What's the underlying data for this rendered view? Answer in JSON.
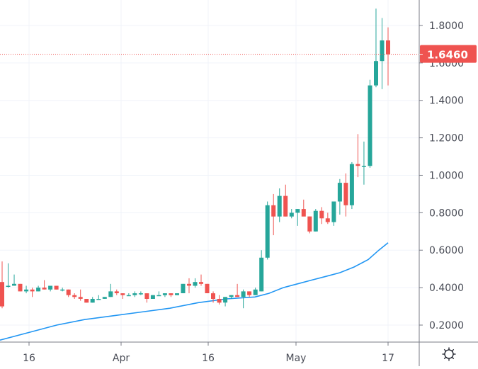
{
  "chart_data": {
    "type": "candlestick",
    "title": "",
    "xlabel": "",
    "ylabel": "",
    "ylim": [
      0.1,
      1.92
    ],
    "grid": true,
    "colors": {
      "up": "#26a69a",
      "down": "#ef5350",
      "ma_line": "#2196f3",
      "grid": "#f0f3fa",
      "axis": "#787b86",
      "price_line": "#ef5350",
      "background": "#ffffff"
    },
    "y_ticks": [
      "0.2000",
      "0.4000",
      "0.6000",
      "0.8000",
      "1.0000",
      "1.2000",
      "1.4000",
      "1.6000",
      "1.8000"
    ],
    "y_tick_values": [
      0.2,
      0.4,
      0.6,
      0.8,
      1.0,
      1.2,
      1.4,
      1.6,
      1.8
    ],
    "x_ticks": [
      {
        "label": "16",
        "x": 41
      },
      {
        "label": "Apr",
        "x": 171
      },
      {
        "label": "16",
        "x": 294
      },
      {
        "label": "May",
        "x": 418
      },
      {
        "label": "17",
        "x": 548
      }
    ],
    "last_price": {
      "label": "1.6460",
      "value": 1.646
    },
    "candles": [
      [
        0.43,
        0.54,
        0.29,
        0.3
      ],
      [
        0.41,
        0.53,
        0.4,
        0.41
      ],
      [
        0.41,
        0.47,
        0.41,
        0.42
      ],
      [
        0.42,
        0.42,
        0.38,
        0.38
      ],
      [
        0.38,
        0.41,
        0.37,
        0.39
      ],
      [
        0.39,
        0.4,
        0.35,
        0.38
      ],
      [
        0.38,
        0.41,
        0.38,
        0.4
      ],
      [
        0.4,
        0.44,
        0.39,
        0.39
      ],
      [
        0.39,
        0.41,
        0.38,
        0.41
      ],
      [
        0.41,
        0.41,
        0.39,
        0.39
      ],
      [
        0.39,
        0.4,
        0.38,
        0.39
      ],
      [
        0.39,
        0.39,
        0.35,
        0.36
      ],
      [
        0.36,
        0.37,
        0.34,
        0.35
      ],
      [
        0.35,
        0.39,
        0.33,
        0.34
      ],
      [
        0.34,
        0.34,
        0.32,
        0.32
      ],
      [
        0.32,
        0.35,
        0.32,
        0.34
      ],
      [
        0.34,
        0.36,
        0.34,
        0.34
      ],
      [
        0.34,
        0.35,
        0.34,
        0.35
      ],
      [
        0.35,
        0.42,
        0.35,
        0.38
      ],
      [
        0.38,
        0.39,
        0.36,
        0.37
      ],
      [
        0.37,
        0.37,
        0.34,
        0.36
      ],
      [
        0.36,
        0.37,
        0.36,
        0.36
      ],
      [
        0.36,
        0.38,
        0.35,
        0.37
      ],
      [
        0.37,
        0.38,
        0.36,
        0.37
      ],
      [
        0.37,
        0.37,
        0.32,
        0.34
      ],
      [
        0.34,
        0.36,
        0.34,
        0.36
      ],
      [
        0.36,
        0.38,
        0.36,
        0.36
      ],
      [
        0.36,
        0.37,
        0.35,
        0.37
      ],
      [
        0.37,
        0.37,
        0.35,
        0.36
      ],
      [
        0.36,
        0.37,
        0.36,
        0.37
      ],
      [
        0.37,
        0.42,
        0.37,
        0.42
      ],
      [
        0.42,
        0.45,
        0.37,
        0.41
      ],
      [
        0.41,
        0.45,
        0.4,
        0.43
      ],
      [
        0.43,
        0.47,
        0.41,
        0.42
      ],
      [
        0.42,
        0.42,
        0.37,
        0.37
      ],
      [
        0.37,
        0.38,
        0.32,
        0.34
      ],
      [
        0.34,
        0.36,
        0.31,
        0.32
      ],
      [
        0.32,
        0.35,
        0.3,
        0.35
      ],
      [
        0.35,
        0.36,
        0.34,
        0.36
      ],
      [
        0.36,
        0.42,
        0.36,
        0.35
      ],
      [
        0.35,
        0.39,
        0.29,
        0.38
      ],
      [
        0.38,
        0.38,
        0.35,
        0.36
      ],
      [
        0.36,
        0.4,
        0.36,
        0.39
      ],
      [
        0.38,
        0.6,
        0.38,
        0.56
      ],
      [
        0.56,
        0.86,
        0.55,
        0.84
      ],
      [
        0.84,
        0.9,
        0.68,
        0.78
      ],
      [
        0.78,
        0.93,
        0.75,
        0.89
      ],
      [
        0.89,
        0.95,
        0.78,
        0.78
      ],
      [
        0.78,
        0.82,
        0.77,
        0.8
      ],
      [
        0.8,
        0.82,
        0.73,
        0.82
      ],
      [
        0.82,
        0.87,
        0.79,
        0.78
      ],
      [
        0.78,
        0.78,
        0.69,
        0.7
      ],
      [
        0.7,
        0.82,
        0.7,
        0.81
      ],
      [
        0.81,
        0.83,
        0.74,
        0.77
      ],
      [
        0.77,
        0.8,
        0.74,
        0.75
      ],
      [
        0.75,
        0.84,
        0.73,
        0.86
      ],
      [
        0.86,
        0.98,
        0.79,
        0.96
      ],
      [
        0.96,
        1.01,
        0.78,
        0.84
      ],
      [
        0.84,
        1.07,
        0.82,
        1.06
      ],
      [
        1.06,
        1.22,
        0.99,
        1.05
      ],
      [
        1.05,
        1.18,
        0.95,
        1.05
      ],
      [
        1.05,
        1.51,
        1.04,
        1.48
      ],
      [
        1.48,
        1.89,
        1.47,
        1.61
      ],
      [
        1.61,
        1.84,
        1.46,
        1.72
      ],
      [
        1.72,
        1.79,
        1.48,
        1.646
      ]
    ],
    "moving_average": [
      [
        0,
        0.12
      ],
      [
        40,
        0.16
      ],
      [
        80,
        0.2
      ],
      [
        120,
        0.23
      ],
      [
        160,
        0.25
      ],
      [
        200,
        0.27
      ],
      [
        240,
        0.29
      ],
      [
        280,
        0.32
      ],
      [
        320,
        0.34
      ],
      [
        360,
        0.35
      ],
      [
        380,
        0.37
      ],
      [
        400,
        0.4
      ],
      [
        420,
        0.42
      ],
      [
        440,
        0.44
      ],
      [
        460,
        0.46
      ],
      [
        480,
        0.48
      ],
      [
        500,
        0.51
      ],
      [
        520,
        0.55
      ],
      [
        535,
        0.6
      ],
      [
        548,
        0.64
      ]
    ]
  },
  "settings": {
    "icon": "gear-icon"
  }
}
